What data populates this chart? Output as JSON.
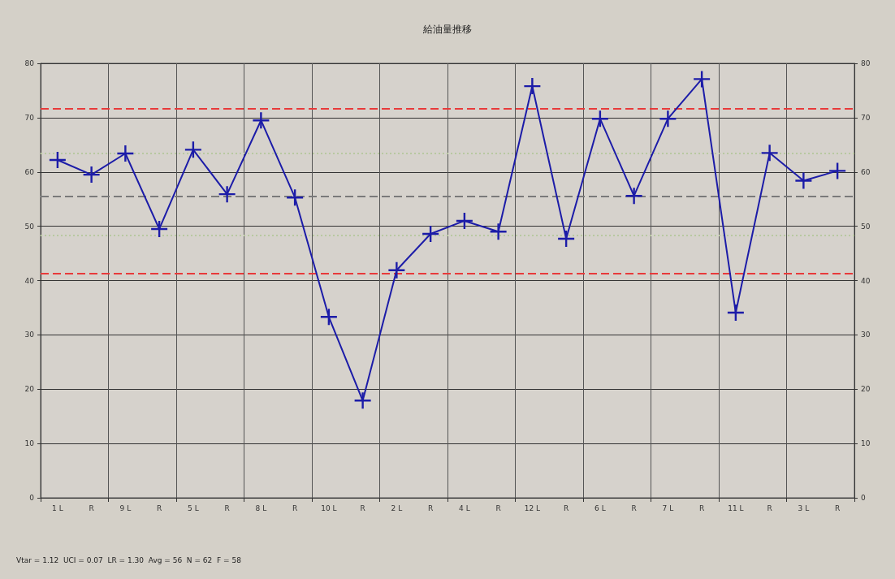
{
  "chart_data": {
    "type": "line",
    "title": "給油量推移",
    "categories": [
      "1 L",
      "R",
      "9 L",
      "R",
      "5 L",
      "R",
      "8 L",
      "R",
      "10 L",
      "R",
      "2 L",
      "R",
      "4 L",
      "R",
      "12 L",
      "R",
      "6 L",
      "R",
      "7 L",
      "R",
      "11 L",
      "R",
      "3 L",
      "R"
    ],
    "series": [
      {
        "color": "#1c1ca8",
        "values": [
          62.2,
          59.5,
          63.4,
          49.5,
          64.1,
          55.9,
          69.5,
          55.3,
          33.3,
          17.9,
          41.9,
          48.6,
          51.0,
          49.0,
          75.8,
          47.7,
          69.8,
          55.6,
          69.8,
          77.1,
          34.1,
          63.5,
          58.4,
          60.2
        ]
      }
    ],
    "ylim": [
      0,
      80
    ],
    "yticks": [
      0,
      10,
      20,
      30,
      40,
      50,
      60,
      70,
      80
    ],
    "y2lim": [
      0,
      80
    ],
    "y2ticks": [
      0,
      10,
      20,
      30,
      40,
      50,
      60,
      70,
      80
    ],
    "ref_lines": [
      {
        "axis": "y",
        "value": 71.6,
        "color": "#e83a3a",
        "line_style": "dashed"
      },
      {
        "axis": "y",
        "value": 41.3,
        "color": "#e83a3a",
        "line_style": "dashed"
      },
      {
        "axis": "y",
        "value": 55.5,
        "color": "#7a7a7a",
        "line_style": "dashed"
      },
      {
        "axis": "y",
        "value": 63.5,
        "color": "#b8c8a0",
        "line_style": "dotted"
      },
      {
        "axis": "y",
        "value": 48.3,
        "color": "#b8c8a0",
        "line_style": "dotted"
      }
    ],
    "annotations": [
      "Vtar = 1.12  UCI = 0.07  LR = 1.30  Avg = 56  N = 62  F = 58"
    ],
    "grid": true,
    "marker": "cross",
    "line_style": "solid"
  }
}
